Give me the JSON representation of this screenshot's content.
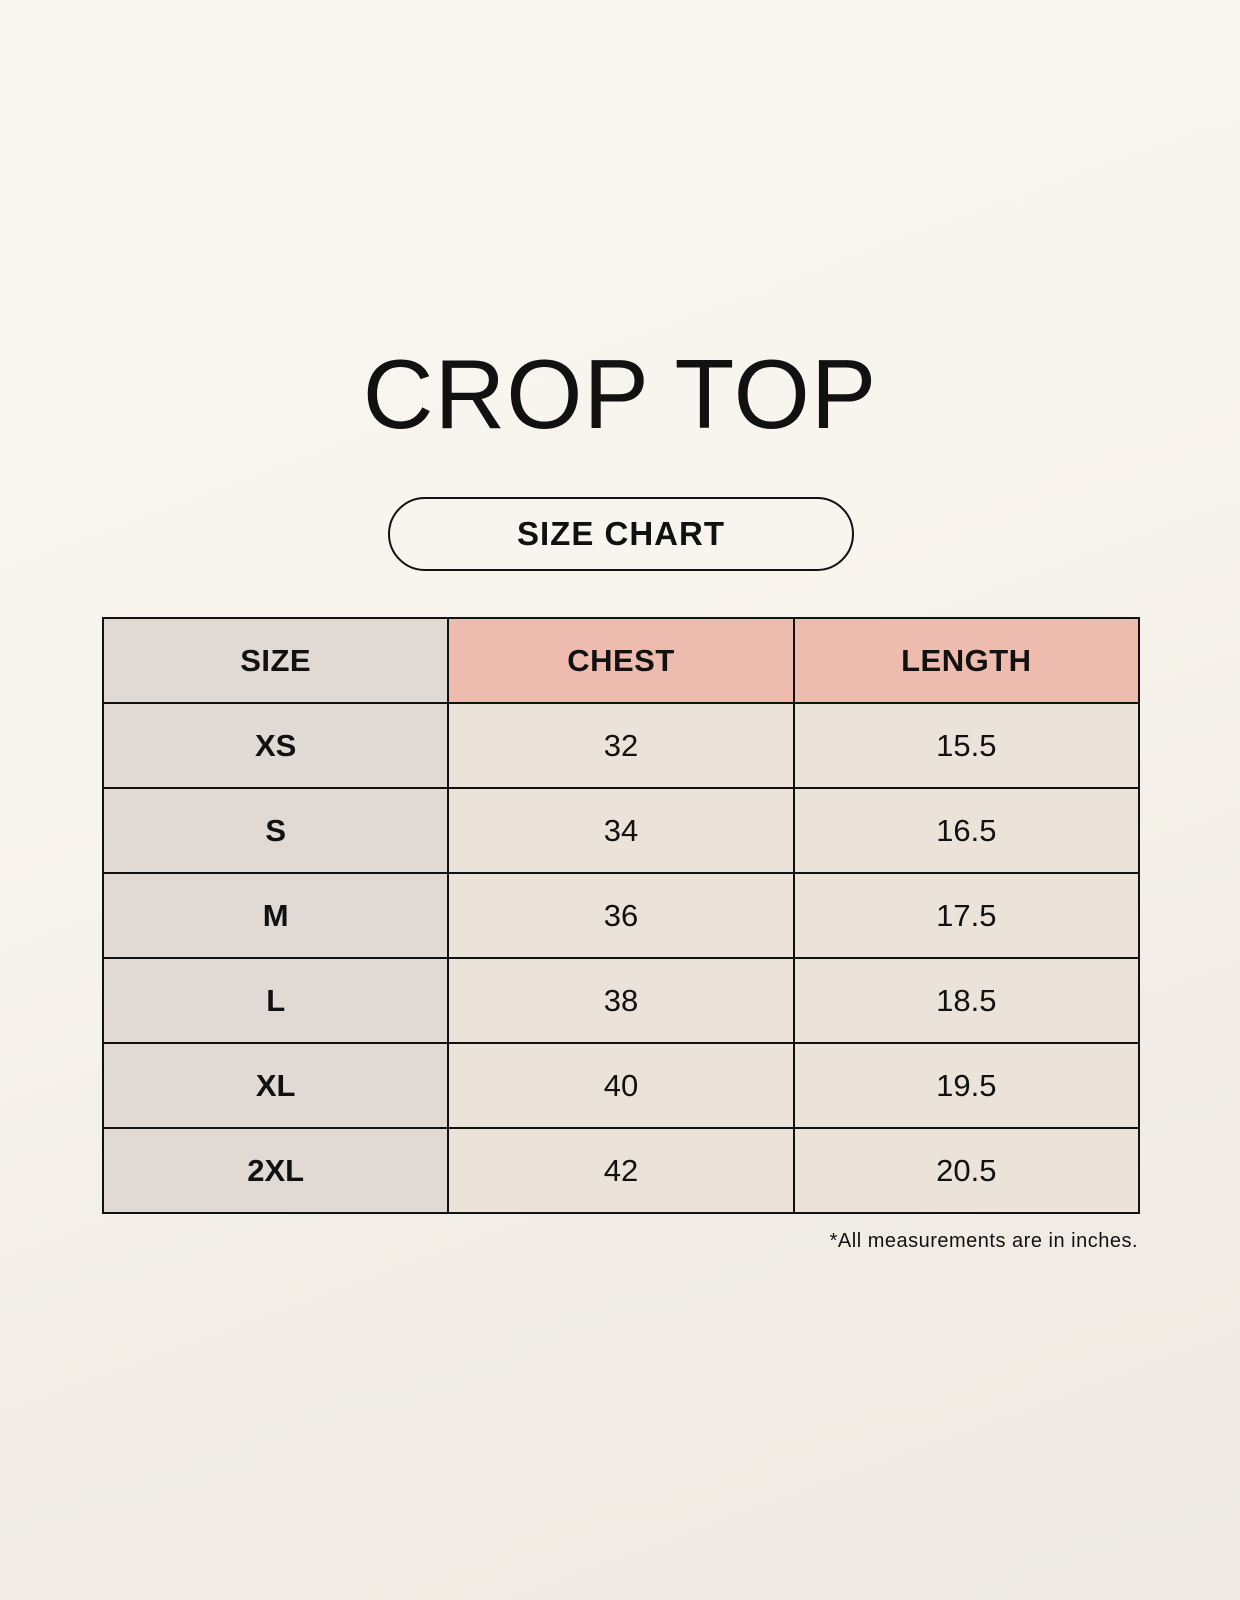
{
  "title": "CROP TOP",
  "subtitle": "SIZE CHART",
  "table": {
    "headers": [
      "SIZE",
      "CHEST",
      "LENGTH"
    ],
    "rows": [
      [
        "XS",
        "32",
        "15.5"
      ],
      [
        "S",
        "34",
        "16.5"
      ],
      [
        "M",
        "36",
        "17.5"
      ],
      [
        "L",
        "38",
        "18.5"
      ],
      [
        "XL",
        "40",
        "19.5"
      ],
      [
        "2XL",
        "42",
        "20.5"
      ]
    ]
  },
  "note": "*All measurements are in inches.",
  "colors": {
    "size_column": "#e0d9d4",
    "header_accent": "#edbcae",
    "cell": "#ebe3d9"
  }
}
